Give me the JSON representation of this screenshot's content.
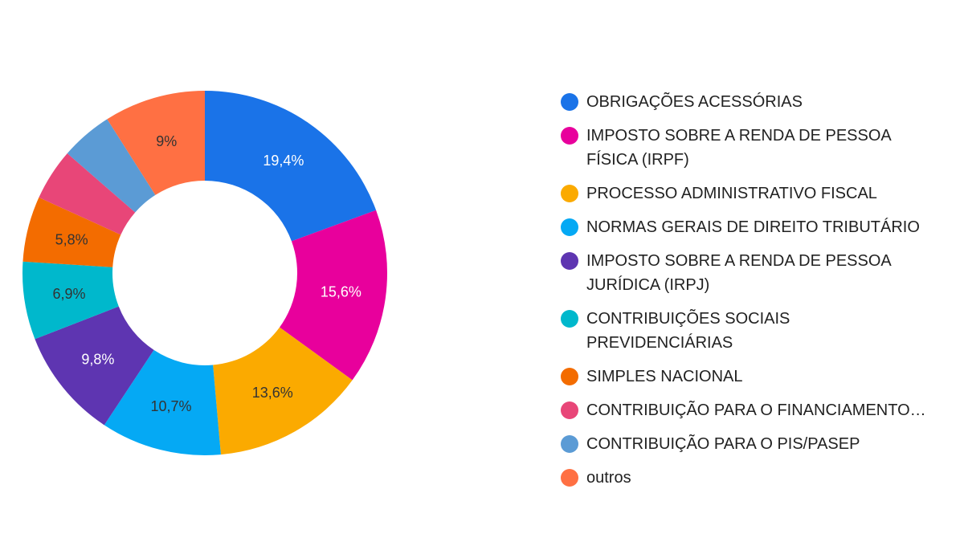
{
  "chart_data": {
    "type": "pie",
    "donut": true,
    "legend_position": "right",
    "slices": [
      {
        "label": "OBRIGAÇÕES ACESSÓRIAS",
        "value": 19.4,
        "value_label": "19,4%",
        "color": "#1a73e8",
        "label_color": "#ffffff"
      },
      {
        "label": "IMPOSTO SOBRE A RENDA DE PESSOA FÍSICA (IRPF)",
        "value": 15.6,
        "value_label": "15,6%",
        "color": "#e8009c",
        "label_color": "#ffffff"
      },
      {
        "label": "PROCESSO ADMINISTRATIVO FISCAL",
        "value": 13.6,
        "value_label": "13,6%",
        "color": "#fbaa00",
        "label_color": "#333333"
      },
      {
        "label": "NORMAS GERAIS DE DIREITO TRIBUTÁRIO",
        "value": 10.7,
        "value_label": "10,7%",
        "color": "#05a9f4",
        "label_color": "#333333"
      },
      {
        "label": "IMPOSTO SOBRE A RENDA DE PESSOA JURÍDICA (IRPJ)",
        "value": 9.8,
        "value_label": "9,8%",
        "color": "#5e35b1",
        "label_color": "#ffffff"
      },
      {
        "label": "CONTRIBUIÇÕES SOCIAIS PREVIDENCIÁRIAS",
        "value": 6.9,
        "value_label": "6,9%",
        "color": "#00b8cc",
        "label_color": "#333333"
      },
      {
        "label": "SIMPLES NACIONAL",
        "value": 5.8,
        "value_label": "5,8%",
        "color": "#f36c00",
        "label_color": "#333333"
      },
      {
        "label": "CONTRIBUIÇÃO PARA O FINANCIAMENTO…",
        "value": 4.6,
        "value_label": "",
        "color": "#e84678",
        "label_color": "#ffffff"
      },
      {
        "label": "CONTRIBUIÇÃO PARA O PIS/PASEP",
        "value": 4.6,
        "value_label": "",
        "color": "#5b9bd5",
        "label_color": "#ffffff"
      },
      {
        "label": "outros",
        "value": 9.0,
        "value_label": "9%",
        "color": "#ff7043",
        "label_color": "#333333"
      }
    ]
  }
}
